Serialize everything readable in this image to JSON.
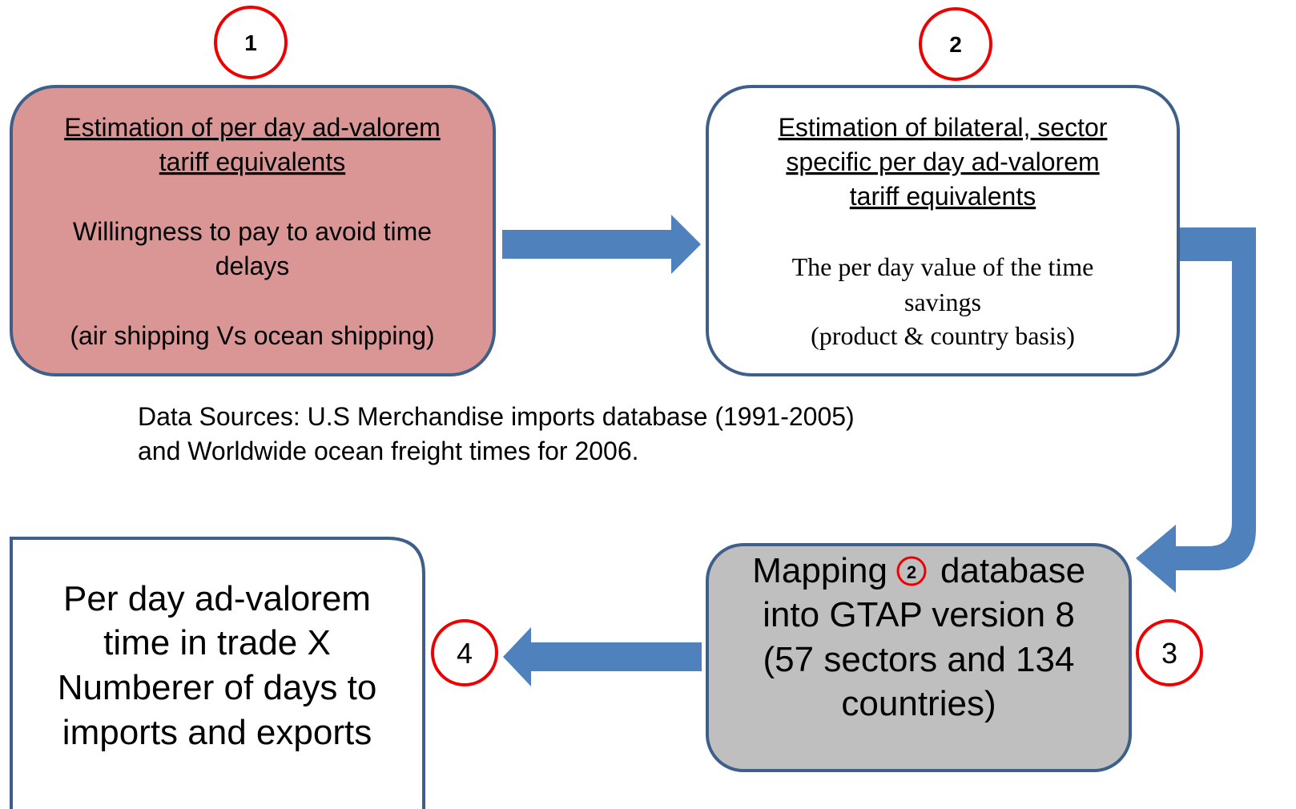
{
  "badges": [
    "1",
    "2",
    "3",
    "4"
  ],
  "nodes": [
    {
      "heading": [
        "Estimation of per day ad-valorem",
        "tariff equivalents"
      ],
      "body": [
        "Willingness to pay to avoid time",
        "delays",
        "(air shipping Vs ocean shipping)"
      ]
    },
    {
      "heading": [
        "Estimation of bilateral, sector",
        "specific per day ad-valorem",
        "tariff equivalents"
      ],
      "body": [
        "The per day value of the time",
        "savings",
        "(product & country basis)"
      ]
    },
    {
      "first_line": {
        "before": "Mapping",
        "badge": "2",
        "after": "database"
      },
      "lines": [
        "into GTAP version 8",
        "(57 sectors and 134",
        "countries)"
      ]
    },
    {
      "lines": [
        "Per day ad-valorem",
        "time in trade  X",
        "Numberer of days to",
        "imports and exports"
      ]
    }
  ],
  "note": [
    "Data Sources: U.S Merchandise imports database (1991-2005)",
    "and Worldwide ocean freight times for 2006."
  ]
}
